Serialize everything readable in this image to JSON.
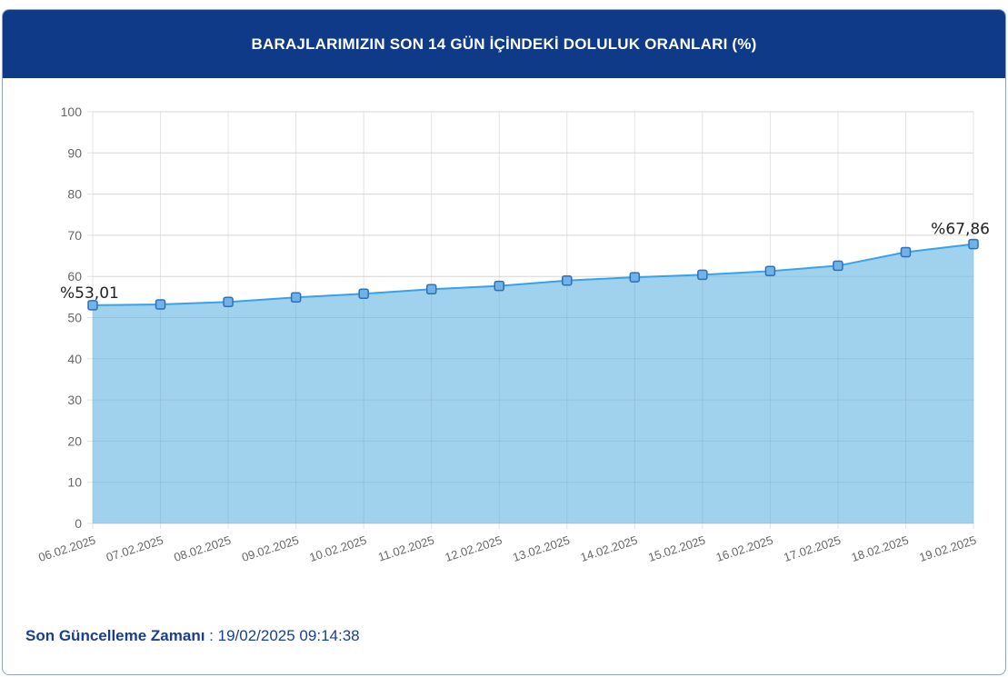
{
  "header": {
    "title": "BARAJLARIMIZIN SON 14 GÜN İÇİNDEKİ DOLULUK ORANLARI (%)"
  },
  "chart_data": {
    "type": "area",
    "title": "BARAJLARIMIZIN SON 14 GÜN İÇİNDEKİ DOLULUK ORANLARI (%)",
    "categories": [
      "06.02.2025",
      "07.02.2025",
      "08.02.2025",
      "09.02.2025",
      "10.02.2025",
      "11.02.2025",
      "12.02.2025",
      "13.02.2025",
      "14.02.2025",
      "15.02.2025",
      "16.02.2025",
      "17.02.2025",
      "18.02.2025",
      "19.02.2025"
    ],
    "values": [
      53.01,
      53.2,
      53.8,
      54.9,
      55.8,
      56.9,
      57.7,
      59.0,
      59.8,
      60.4,
      61.3,
      62.6,
      65.9,
      67.86
    ],
    "ylim": [
      0,
      100
    ],
    "yticks": [
      0,
      10,
      20,
      30,
      40,
      50,
      60,
      70,
      80,
      90,
      100
    ],
    "grid": true,
    "annotations": {
      "first": "%53,01",
      "last": "%67,86"
    },
    "colors": {
      "line": "#36a2eb",
      "fill": "#9bcfec",
      "marker": "#2f6fb5"
    }
  },
  "footer": {
    "label": "Son Güncelleme Zamanı",
    "separator": " : ",
    "value": "19/02/2025 09:14:38"
  }
}
